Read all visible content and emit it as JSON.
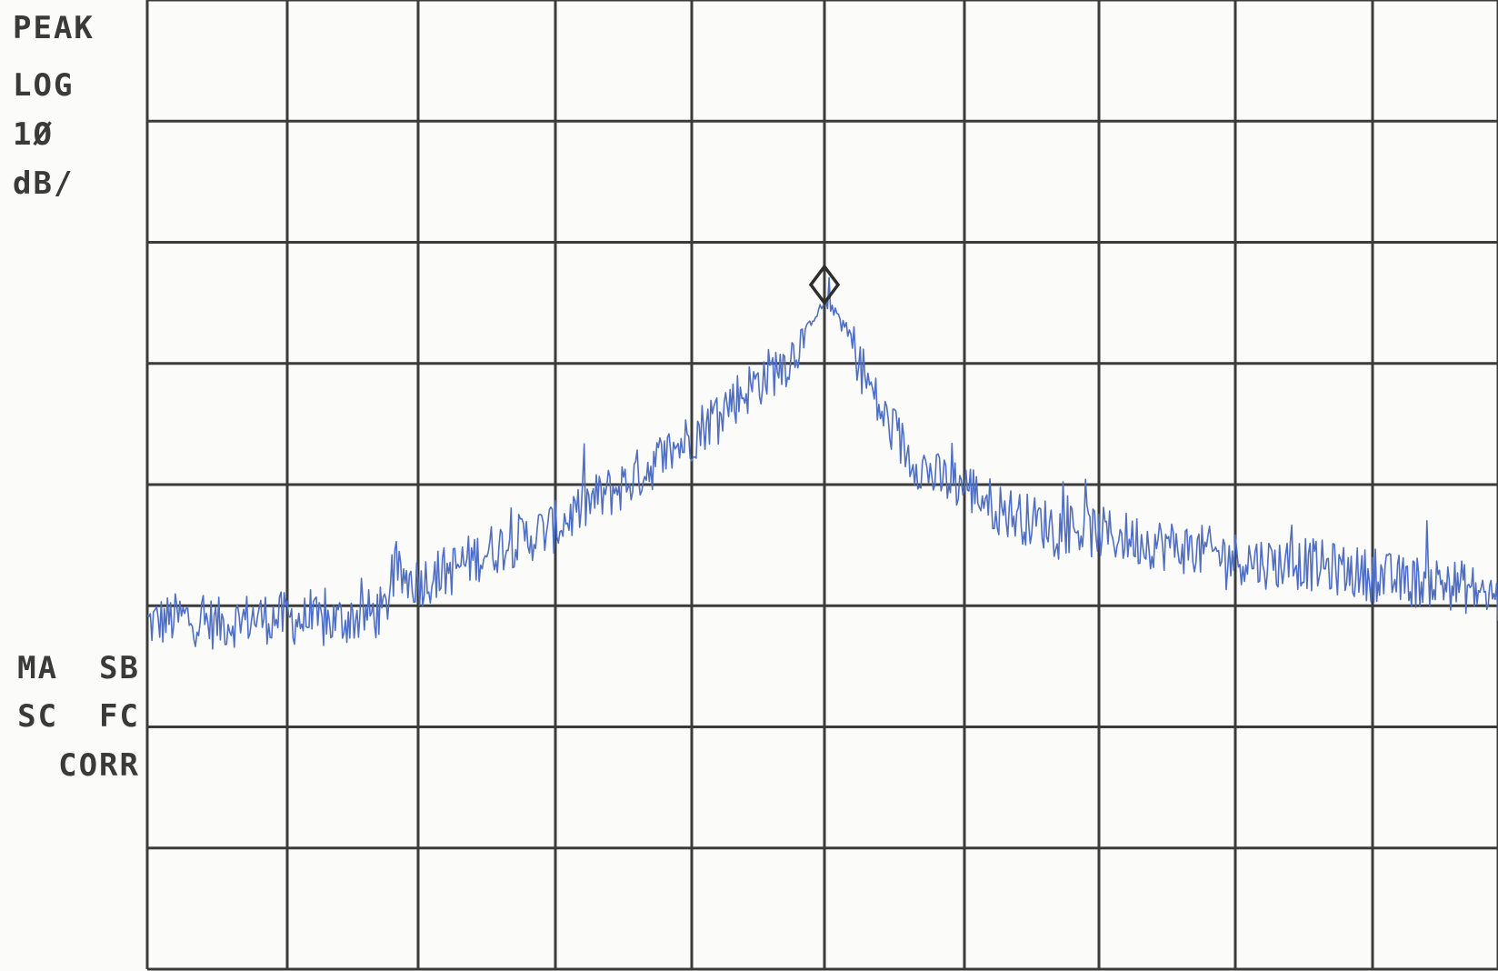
{
  "display": {
    "detector": "PEAK",
    "scale_mode": "LOG",
    "scale_value": "1Ø",
    "scale_unit": "dB/",
    "status_line1": "MA  SB",
    "status_line2": "SC  FC",
    "status_line3": "CORR"
  },
  "colors": {
    "trace": "#4f6fc4",
    "grid": "#3b3b3b",
    "marker": "#2e2e2e",
    "background": "#fbfbf9",
    "text": "#3a3a3a"
  },
  "chart_data": {
    "type": "line",
    "title": "",
    "xlabel": "",
    "ylabel": "",
    "xlim": [
      0,
      10
    ],
    "ylim": [
      -80,
      0
    ],
    "x_divisions": 10,
    "y_divisions": 8,
    "y_scale": "log 10 dB/div",
    "grid": true,
    "marker": {
      "shape": "diamond",
      "x": 5.0,
      "y": -23.5
    },
    "series": [
      {
        "points": [
          [
            0.0,
            -51.5
          ],
          [
            0.25,
            -51.0
          ],
          [
            0.5,
            -51.5
          ],
          [
            0.75,
            -51.0
          ],
          [
            1.0,
            -51.0
          ],
          [
            1.25,
            -51.5
          ],
          [
            1.5,
            -51.0
          ],
          [
            1.75,
            -50.5
          ],
          [
            1.8,
            -47.5
          ],
          [
            2.0,
            -48.0
          ],
          [
            2.25,
            -47.0
          ],
          [
            2.5,
            -45.5
          ],
          [
            2.75,
            -44.5
          ],
          [
            3.0,
            -43.5
          ],
          [
            3.25,
            -41.5
          ],
          [
            3.5,
            -40.0
          ],
          [
            3.75,
            -38.0
          ],
          [
            4.0,
            -36.0
          ],
          [
            4.25,
            -33.5
          ],
          [
            4.5,
            -31.5
          ],
          [
            4.75,
            -29.5
          ],
          [
            4.9,
            -26.5
          ],
          [
            5.0,
            -25.0
          ],
          [
            5.1,
            -26.0
          ],
          [
            5.2,
            -28.5
          ],
          [
            5.4,
            -34.0
          ],
          [
            5.6,
            -37.5
          ],
          [
            5.8,
            -39.5
          ],
          [
            6.0,
            -40.0
          ],
          [
            6.25,
            -42.0
          ],
          [
            6.5,
            -43.0
          ],
          [
            6.75,
            -43.5
          ],
          [
            7.0,
            -44.0
          ],
          [
            7.25,
            -44.5
          ],
          [
            7.5,
            -45.0
          ],
          [
            7.75,
            -45.5
          ],
          [
            8.0,
            -46.0
          ],
          [
            8.25,
            -46.5
          ],
          [
            8.5,
            -46.5
          ],
          [
            8.75,
            -47.0
          ],
          [
            9.0,
            -47.5
          ],
          [
            9.25,
            -48.0
          ],
          [
            9.5,
            -48.0
          ],
          [
            9.75,
            -48.5
          ],
          [
            10.0,
            -49.5
          ]
        ]
      }
    ]
  }
}
